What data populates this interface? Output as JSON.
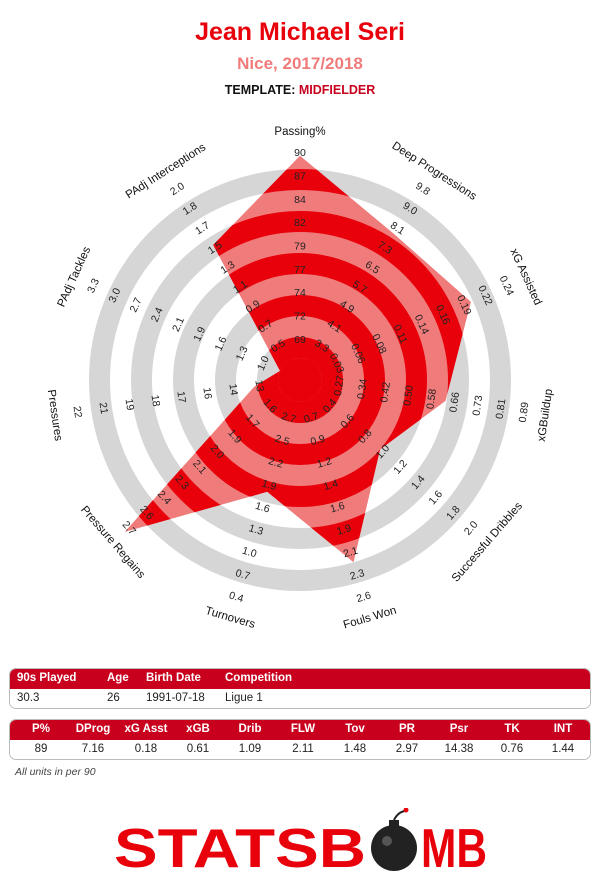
{
  "header": {
    "player": "Jean Michael Seri",
    "team_season": "Nice, 2017/2018",
    "template_label": "TEMPLATE:",
    "template_value": "MIDFIELDER"
  },
  "colors": {
    "accent": "#e8000b",
    "accent_light": "#f07b7b",
    "table_header": "#c8001e",
    "ring": "#d6d6d6"
  },
  "chart_data": {
    "type": "radar",
    "title": "Jean Michael Seri",
    "rings": 5,
    "axes": [
      {
        "name": "Passing%",
        "ticks": [
          "69",
          "72",
          "74",
          "77",
          "79",
          "82",
          "84",
          "87",
          "90"
        ],
        "value": 89,
        "fraction": 0.963
      },
      {
        "name": "Deep Progressions",
        "ticks": [
          "3.3",
          "4.1",
          "4.9",
          "5.7",
          "6.5",
          "7.3",
          "8.1",
          "9.0",
          "9.8"
        ],
        "value": 7.16,
        "fraction": 0.722
      },
      {
        "name": "xG Assisted",
        "ticks": [
          "0.03",
          "0.06",
          "0.08",
          "0.11",
          "0.14",
          "0.16",
          "0.19",
          "0.22",
          "0.24"
        ],
        "value": 0.18,
        "fraction": 0.79
      },
      {
        "name": "xGBuildup",
        "ticks": [
          "0.27",
          "0.34",
          "0.42",
          "0.50",
          "0.58",
          "0.66",
          "0.73",
          "0.81",
          "0.89"
        ],
        "value": 0.61,
        "fraction": 0.595
      },
      {
        "name": "Successful Dribbles",
        "ticks": [
          "0.4",
          "0.6",
          "0.8",
          "1.0",
          "1.2",
          "1.4",
          "1.6",
          "1.8",
          "2.0"
        ],
        "value": 1.09,
        "fraction": 0.4
      },
      {
        "name": "Fouls Won",
        "ticks": [
          "0.7",
          "0.9",
          "1.2",
          "1.4",
          "1.6",
          "1.9",
          "2.1",
          "2.3",
          "2.6"
        ],
        "value": 2.11,
        "fraction": 0.8
      },
      {
        "name": "Turnovers",
        "ticks": [
          "2.7",
          "2.5",
          "2.2",
          "1.9",
          "1.6",
          "1.3",
          "1.0",
          "0.7",
          "0.4"
        ],
        "value": 1.48,
        "fraction": 0.45
      },
      {
        "name": "Pressure Regains",
        "ticks": [
          "1.6",
          "1.7",
          "1.9",
          "2.0",
          "2.1",
          "2.3",
          "2.4",
          "2.6",
          "2.7"
        ],
        "value": 2.97,
        "fraction": 1.0
      },
      {
        "name": "Pressures",
        "ticks": [
          "13",
          "14",
          "16",
          "17",
          "18",
          "19",
          "21",
          "22"
        ],
        "value": 14.38,
        "fraction": 0.115
      },
      {
        "name": "PAdj Tackles",
        "ticks": [
          "1.0",
          "1.3",
          "1.6",
          "1.9",
          "2.1",
          "2.4",
          "2.7",
          "3.0",
          "3.3"
        ],
        "value": 0.76,
        "fraction": 0.0
      },
      {
        "name": "PAdj Interceptions",
        "ticks": [
          "0.5",
          "0.7",
          "0.9",
          "1.1",
          "1.3",
          "1.5",
          "1.7",
          "1.8",
          "2.0"
        ],
        "value": 1.44,
        "fraction": 0.66
      }
    ]
  },
  "info_table": {
    "headers": [
      "90s Played",
      "Age",
      "Birth Date",
      "Competition"
    ],
    "values": [
      "30.3",
      "26",
      "1991-07-18",
      "Ligue 1"
    ]
  },
  "stats_table": {
    "headers": [
      "P%",
      "DProg",
      "xG Asst",
      "xGB",
      "Drib",
      "FLW",
      "Tov",
      "PR",
      "Psr",
      "TK",
      "INT"
    ],
    "values": [
      "89",
      "7.16",
      "0.18",
      "0.61",
      "1.09",
      "2.11",
      "1.48",
      "2.97",
      "14.38",
      "0.76",
      "1.44"
    ]
  },
  "footnote": "All units in per 90",
  "logo": {
    "text_left": "STATSB",
    "text_right": "MB"
  }
}
